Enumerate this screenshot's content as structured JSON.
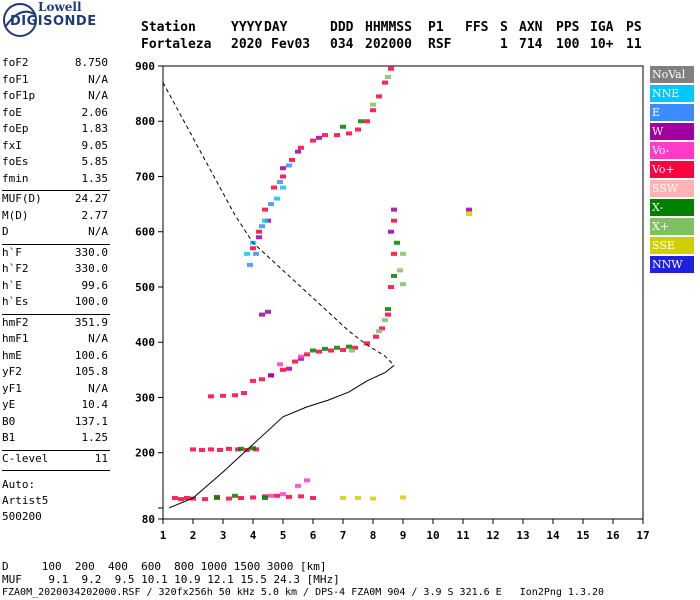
{
  "logo": {
    "line1": "Lowell",
    "line2": "DIGISONDE"
  },
  "header": {
    "labels": [
      "Station",
      "YYYY",
      "DAY",
      "DDD",
      "HHMMSS",
      "P1",
      "FFS",
      "S",
      "AXN",
      "PPS",
      "IGA",
      "PS"
    ],
    "values": [
      "Fortaleza",
      "2020",
      "Fev03",
      "034",
      "202000",
      "RSF",
      "1",
      "714",
      "100",
      "10+",
      "11"
    ]
  },
  "params": {
    "group1": [
      {
        "k": "foF2",
        "v": "8.750"
      },
      {
        "k": "foF1",
        "v": "N/A"
      },
      {
        "k": "foF1p",
        "v": "N/A"
      },
      {
        "k": "foE",
        "v": "2.06"
      },
      {
        "k": "foEp",
        "v": "1.83"
      },
      {
        "k": "fxI",
        "v": "9.05"
      },
      {
        "k": "foEs",
        "v": "5.85"
      },
      {
        "k": "fmin",
        "v": "1.35"
      }
    ],
    "group2": [
      {
        "k": "MUF(D)",
        "v": "24.27"
      },
      {
        "k": "M(D)",
        "v": "2.77"
      },
      {
        "k": "D",
        "v": "N/A"
      }
    ],
    "group3": [
      {
        "k": "h`F",
        "v": "330.0"
      },
      {
        "k": "h`F2",
        "v": "330.0"
      },
      {
        "k": "h`E",
        "v": "99.6"
      },
      {
        "k": "h`Es",
        "v": "100.0"
      }
    ],
    "group4": [
      {
        "k": "hmF2",
        "v": "351.9"
      },
      {
        "k": "hmF1",
        "v": "N/A"
      },
      {
        "k": "hmE",
        "v": "100.6"
      },
      {
        "k": "yF2",
        "v": "105.8"
      },
      {
        "k": "yF1",
        "v": "N/A"
      },
      {
        "k": "yE",
        "v": "10.4"
      },
      {
        "k": "B0",
        "v": "137.1"
      },
      {
        "k": "B1",
        "v": "1.25"
      }
    ],
    "group5": [
      {
        "k": "C-level",
        "v": "11"
      }
    ],
    "auto_lines": [
      "Auto:",
      "Artist5",
      "500200"
    ]
  },
  "legend": [
    {
      "label": "NoVal",
      "color": "#808080"
    },
    {
      "label": "NNE",
      "color": "#00c8ff"
    },
    {
      "label": "E",
      "color": "#3c8cff"
    },
    {
      "label": "W",
      "color": "#a000a0"
    },
    {
      "label": "Vo-",
      "color": "#ff3cc8"
    },
    {
      "label": "Vo+",
      "color": "#ff0040"
    },
    {
      "label": "SSW",
      "color": "#ffb4b4"
    },
    {
      "label": "X-",
      "color": "#008000"
    },
    {
      "label": "X+",
      "color": "#80c060"
    },
    {
      "label": "SSE",
      "color": "#d0d000"
    },
    {
      "label": "NNW",
      "color": "#2020e0"
    }
  ],
  "bottom": {
    "d_line": "D     100  200  400  600  800 1000 1500 3000 [km]",
    "muf_line": "MUF    9.1  9.2  9.5 10.1 10.9 12.1 15.5 24.3 [MHz]",
    "footer": "FZA0M_2020034202000.RSF / 320fx256h 50 kHz 5.0 km / DPS-4 FZA0M 904 / 3.9 S 321.6 E   Ion2Png 1.3.20"
  },
  "chart_data": {
    "type": "scatter",
    "xlim": [
      1,
      17
    ],
    "ylim": [
      80,
      900
    ],
    "xticks": [
      1,
      2,
      3,
      4,
      5,
      6,
      7,
      8,
      9,
      10,
      11,
      12,
      13,
      14,
      15,
      16,
      17
    ],
    "yticks": [
      80,
      100,
      200,
      300,
      400,
      500,
      600,
      700,
      800,
      900
    ],
    "ytick_labels": [
      "80",
      "",
      "200",
      "300",
      "400",
      "500",
      "600",
      "700",
      "800",
      "900"
    ],
    "series": [
      {
        "kind": "traces",
        "color": "#ff0040",
        "points": [
          [
            1.4,
            118
          ],
          [
            1.6,
            116
          ],
          [
            1.8,
            118
          ],
          [
            2.0,
            117
          ],
          [
            2.4,
            116
          ],
          [
            2.8,
            118
          ],
          [
            3.2,
            117
          ],
          [
            3.6,
            118
          ],
          [
            4.0,
            119
          ],
          [
            4.4,
            121
          ],
          [
            4.8,
            122
          ],
          [
            5.2,
            120
          ],
          [
            5.6,
            121
          ],
          [
            6.0,
            118
          ],
          [
            2.0,
            206
          ],
          [
            2.3,
            205
          ],
          [
            2.6,
            206
          ],
          [
            2.9,
            205
          ],
          [
            3.2,
            207
          ],
          [
            3.5,
            206
          ],
          [
            3.8,
            205
          ],
          [
            4.1,
            206
          ],
          [
            2.6,
            302
          ],
          [
            3.0,
            303
          ],
          [
            3.4,
            304
          ],
          [
            3.7,
            308
          ],
          [
            4.0,
            330
          ],
          [
            4.3,
            333
          ],
          [
            4.6,
            340
          ],
          [
            5.0,
            350
          ],
          [
            5.4,
            365
          ],
          [
            5.8,
            378
          ],
          [
            6.2,
            383
          ],
          [
            6.6,
            385
          ],
          [
            7.0,
            386
          ],
          [
            7.4,
            390
          ],
          [
            7.8,
            398
          ],
          [
            8.1,
            410
          ],
          [
            8.3,
            425
          ],
          [
            8.5,
            450
          ],
          [
            8.6,
            500
          ],
          [
            8.7,
            560
          ],
          [
            8.7,
            620
          ],
          [
            4.0,
            570
          ],
          [
            4.2,
            600
          ],
          [
            4.4,
            640
          ],
          [
            4.7,
            680
          ],
          [
            5.0,
            700
          ],
          [
            5.3,
            730
          ],
          [
            5.6,
            752
          ],
          [
            6.0,
            765
          ],
          [
            6.4,
            775
          ],
          [
            6.8,
            775
          ],
          [
            7.2,
            778
          ],
          [
            7.5,
            785
          ],
          [
            7.8,
            800
          ],
          [
            8.0,
            820
          ],
          [
            8.2,
            845
          ],
          [
            8.4,
            870
          ],
          [
            8.6,
            895
          ]
        ]
      },
      {
        "kind": "traces",
        "color": "#008000",
        "points": [
          [
            2.8,
            120
          ],
          [
            3.4,
            122
          ],
          [
            4.4,
            118
          ],
          [
            6.0,
            385
          ],
          [
            6.4,
            388
          ],
          [
            6.8,
            390
          ],
          [
            7.2,
            392
          ],
          [
            3.6,
            207
          ],
          [
            4.0,
            208
          ],
          [
            8.5,
            460
          ],
          [
            8.7,
            520
          ],
          [
            8.8,
            580
          ],
          [
            7.0,
            790
          ],
          [
            7.6,
            800
          ]
        ]
      },
      {
        "kind": "traces",
        "color": "#80c060",
        "points": [
          [
            9.0,
            505
          ],
          [
            9.0,
            560
          ],
          [
            8.9,
            530
          ],
          [
            8.2,
            420
          ],
          [
            8.4,
            440
          ],
          [
            8.0,
            830
          ],
          [
            8.5,
            880
          ],
          [
            7.3,
            385
          ]
        ]
      },
      {
        "kind": "traces",
        "color": "#a000a0",
        "points": [
          [
            4.6,
            340
          ],
          [
            5.2,
            352
          ],
          [
            5.6,
            370
          ],
          [
            4.3,
            450
          ],
          [
            4.5,
            455
          ],
          [
            4.2,
            590
          ],
          [
            4.5,
            620
          ],
          [
            5.0,
            715
          ],
          [
            5.5,
            745
          ],
          [
            6.2,
            770
          ],
          [
            8.6,
            600
          ],
          [
            8.7,
            640
          ],
          [
            11.2,
            640
          ]
        ]
      },
      {
        "kind": "traces",
        "color": "#3c8cff",
        "points": [
          [
            3.9,
            540
          ],
          [
            4.1,
            560
          ],
          [
            4.3,
            610
          ],
          [
            4.6,
            650
          ],
          [
            4.9,
            690
          ],
          [
            5.2,
            720
          ]
        ]
      },
      {
        "kind": "traces",
        "color": "#00c8ff",
        "points": [
          [
            3.8,
            560
          ],
          [
            4.0,
            580
          ],
          [
            4.4,
            620
          ],
          [
            4.8,
            660
          ],
          [
            5.0,
            680
          ]
        ]
      },
      {
        "kind": "traces",
        "color": "#ff3cc8",
        "points": [
          [
            5.5,
            140
          ],
          [
            5.8,
            150
          ],
          [
            4.6,
            122
          ],
          [
            5.0,
            125
          ],
          [
            4.9,
            360
          ],
          [
            5.6,
            374
          ]
        ]
      },
      {
        "kind": "traces",
        "color": "#d0d000",
        "points": [
          [
            7.0,
            118
          ],
          [
            7.5,
            118
          ],
          [
            8.0,
            117
          ],
          [
            9.0,
            119
          ],
          [
            11.2,
            632
          ]
        ]
      }
    ],
    "profile_curve": [
      [
        1.2,
        100
      ],
      [
        2.0,
        118
      ],
      [
        3.0,
        165
      ],
      [
        4.0,
        215
      ],
      [
        5.0,
        265
      ],
      [
        5.8,
        283
      ],
      [
        6.5,
        295
      ],
      [
        7.2,
        310
      ],
      [
        7.8,
        330
      ],
      [
        8.4,
        345
      ],
      [
        8.7,
        358
      ]
    ],
    "dashed_curve": [
      [
        1.0,
        870
      ],
      [
        1.8,
        790
      ],
      [
        2.5,
        720
      ],
      [
        3.0,
        670
      ],
      [
        3.4,
        630
      ],
      [
        4.0,
        580
      ],
      [
        4.8,
        540
      ],
      [
        5.6,
        500
      ],
      [
        6.4,
        460
      ],
      [
        7.2,
        420
      ],
      [
        7.8,
        395
      ],
      [
        8.4,
        375
      ],
      [
        8.7,
        358
      ]
    ]
  }
}
